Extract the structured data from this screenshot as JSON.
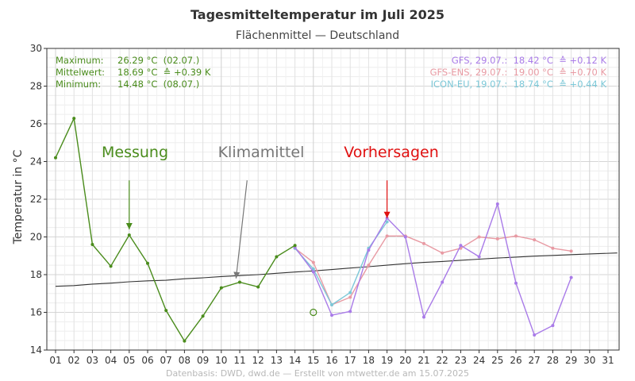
{
  "chart_data": {
    "type": "line",
    "title": "Tagesmitteltemperatur im Juli 2025",
    "subtitle": "Flächenmittel — Deutschland",
    "ylabel": "Temperatur in °C",
    "xlabel": "",
    "ylim": [
      14,
      30
    ],
    "xlim": [
      1,
      31
    ],
    "y_ticks": [
      "14",
      "16",
      "18",
      "20",
      "22",
      "24",
      "26",
      "28",
      "30"
    ],
    "x_ticks": [
      "01",
      "02",
      "03",
      "04",
      "05",
      "06",
      "07",
      "08",
      "09",
      "10",
      "11",
      "12",
      "13",
      "14",
      "15",
      "16",
      "17",
      "18",
      "19",
      "20",
      "21",
      "22",
      "23",
      "24",
      "25",
      "26",
      "27",
      "28",
      "29",
      "30",
      "31"
    ],
    "grid": true,
    "footer": "Datenbasis: DWD, dwd.de — Erstellt von mtwetter.de am 15.07.2025",
    "stats": [
      {
        "label": "Maximum:",
        "value": "26.29 °C  (02.07.)"
      },
      {
        "label": "Mittelwert:",
        "value": "18.69 °C  ≙ +0.39 K"
      },
      {
        "label": "Minimum:",
        "value": "14.48 °C  (08.07.)"
      }
    ],
    "legend": [
      {
        "text": "GFS, 29.07.:  18.42 °C  ≙ +0.12 K",
        "color": "#a97be8"
      },
      {
        "text": "GFS-ENS, 29.07.:  19.00 °C  ≙ +0.70 K",
        "color": "#e89aa3"
      },
      {
        "text": "ICON-EU, 19.07.:  18.74 °C  ≙ +0.44 K",
        "color": "#7cc8d8"
      }
    ],
    "annotations": [
      {
        "text": "Messung",
        "color": "#4a8c1c",
        "x_from": 5,
        "y_from": 23.0,
        "x_to": 5,
        "y_to": 20.4
      },
      {
        "text": "Klimamittel",
        "color": "#777777",
        "x_from": 11.4,
        "y_from": 23.0,
        "x_to": 10.8,
        "y_to": 17.8
      },
      {
        "text": "Vorhersagen",
        "color": "#e01010",
        "x_from": 19,
        "y_from": 23.0,
        "x_to": 19,
        "y_to": 21.0
      }
    ],
    "outlier_point": {
      "x": 15,
      "y": 16.0,
      "color": "#4a8c1c"
    },
    "series": [
      {
        "name": "Klimamittel",
        "color": "#333333",
        "marker": false,
        "x": [
          1,
          2,
          3,
          4,
          5,
          6,
          7,
          8,
          9,
          10,
          11,
          12,
          13,
          14,
          15,
          16,
          17,
          18,
          19,
          20,
          21,
          22,
          23,
          24,
          25,
          26,
          27,
          28,
          29,
          30,
          31.5
        ],
        "values": [
          17.38,
          17.42,
          17.5,
          17.55,
          17.62,
          17.67,
          17.7,
          17.78,
          17.83,
          17.9,
          17.95,
          18.0,
          18.07,
          18.14,
          18.2,
          18.27,
          18.35,
          18.42,
          18.5,
          18.58,
          18.65,
          18.7,
          18.76,
          18.82,
          18.88,
          18.93,
          18.98,
          19.02,
          19.06,
          19.1,
          19.15
        ]
      },
      {
        "name": "GFS-ENS",
        "color": "#e89aa3",
        "marker": true,
        "x": [
          14,
          15,
          16,
          17,
          18,
          19,
          20,
          21,
          22,
          23,
          24,
          25,
          26,
          27,
          28,
          29
        ],
        "values": [
          19.4,
          18.65,
          16.4,
          16.8,
          18.5,
          20.05,
          20.05,
          19.65,
          19.15,
          19.4,
          20.0,
          19.9,
          20.05,
          19.85,
          19.4,
          19.25
        ]
      },
      {
        "name": "ICON-EU",
        "color": "#7cc8d8",
        "marker": true,
        "x": [
          14,
          15,
          16,
          17,
          18,
          19
        ],
        "values": [
          19.4,
          18.3,
          16.4,
          17.05,
          19.4,
          20.8
        ]
      },
      {
        "name": "GFS",
        "color": "#a97be8",
        "marker": true,
        "x": [
          14,
          15,
          16,
          17,
          18,
          19,
          20,
          21,
          22,
          23,
          24,
          25,
          26,
          27,
          28,
          29
        ],
        "values": [
          19.45,
          18.15,
          15.85,
          16.05,
          19.3,
          21.0,
          20.0,
          15.75,
          17.6,
          19.55,
          18.95,
          21.75,
          17.55,
          14.8,
          15.3,
          17.85
        ]
      },
      {
        "name": "Messung",
        "color": "#4a8c1c",
        "marker": true,
        "x": [
          1,
          2,
          3,
          4,
          5,
          6,
          7,
          8,
          9,
          10,
          11,
          12,
          13,
          14
        ],
        "values": [
          24.2,
          26.29,
          19.6,
          18.45,
          20.1,
          18.6,
          16.1,
          14.48,
          15.8,
          17.3,
          17.6,
          17.35,
          18.95,
          19.55
        ]
      }
    ]
  }
}
